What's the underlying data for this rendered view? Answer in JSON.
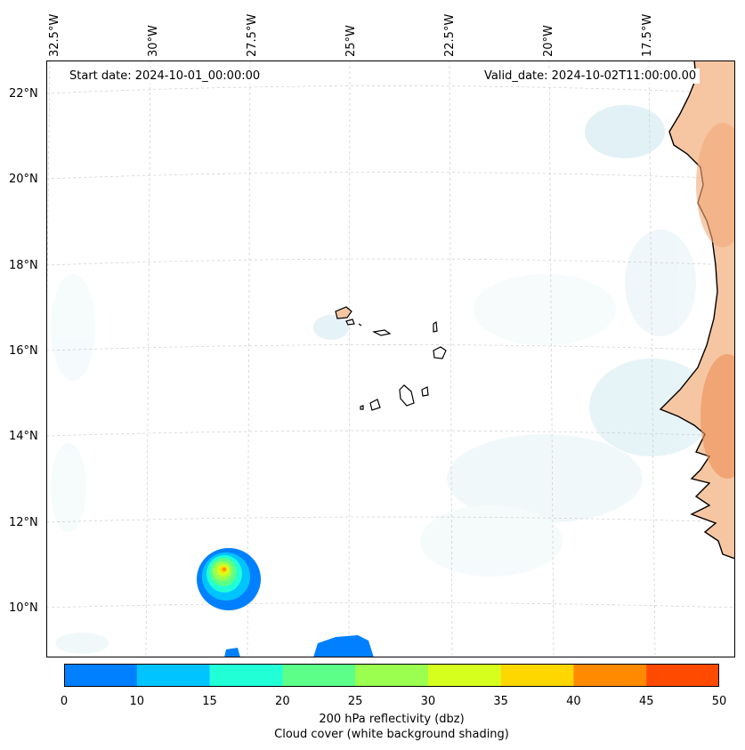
{
  "map": {
    "title_left": "Start date: 2024-10-01_00:00:00",
    "title_right": "Valid_date: 2024-10-02T11:00:00.00",
    "lon_labels": [
      "32.5°W",
      "30°W",
      "27.5°W",
      "25°W",
      "22.5°W",
      "20°W",
      "17.5°W"
    ],
    "lat_labels": [
      "22°N",
      "20°N",
      "18°N",
      "16°N",
      "14°N",
      "12°N",
      "10°N"
    ]
  },
  "colorbar": {
    "ticks": [
      "0",
      "10",
      "15",
      "20",
      "25",
      "30",
      "35",
      "40",
      "45",
      "50"
    ],
    "colors": [
      "#0080ff",
      "#00c4ff",
      "#20ffd6",
      "#5cff88",
      "#9aff4e",
      "#d6ff1e",
      "#ffd700",
      "#ff8a00",
      "#ff4a00"
    ],
    "label_line1": "200 hPa reflectivity (dbz)",
    "label_line2": "Cloud cover (white background shading)"
  }
}
